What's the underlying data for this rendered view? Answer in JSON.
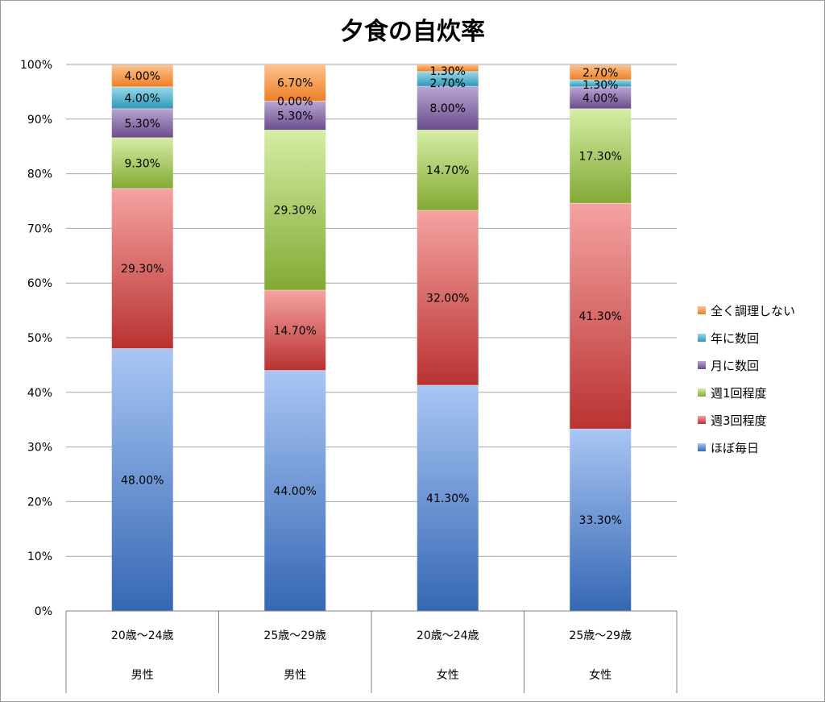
{
  "chart_data": {
    "type": "bar",
    "stacked": true,
    "title": "夕食の自炊率",
    "yticks": [
      "0%",
      "10%",
      "20%",
      "30%",
      "40%",
      "50%",
      "60%",
      "70%",
      "80%",
      "90%",
      "100%"
    ],
    "ylim": [
      0,
      100
    ],
    "grid": true,
    "legend_position": "right",
    "categories": [
      {
        "age": "20歳〜24歳",
        "gender": "男性"
      },
      {
        "age": "25歳〜29歳",
        "gender": "男性"
      },
      {
        "age": "20歳〜24歳",
        "gender": "女性"
      },
      {
        "age": "25歳〜29歳",
        "gender": "女性"
      }
    ],
    "series": [
      {
        "name": "ほぼ毎日",
        "color": "#4f7fc7",
        "colors": [
          "#3567b4",
          "#a9c6f4"
        ],
        "values": [
          48.0,
          44.0,
          41.3,
          33.3
        ],
        "labels": [
          "48.00%",
          "44.00%",
          "41.30%",
          "33.30%"
        ]
      },
      {
        "name": "週3回程度",
        "color": "#cd4d4b",
        "colors": [
          "#b93231",
          "#f5a3a2"
        ],
        "values": [
          29.3,
          14.7,
          32.0,
          41.3
        ],
        "labels": [
          "29.30%",
          "14.70%",
          "32.00%",
          "41.30%"
        ]
      },
      {
        "name": "週1回程度",
        "color": "#98bc48",
        "colors": [
          "#83a934",
          "#d4eea5"
        ],
        "values": [
          9.3,
          29.3,
          14.7,
          17.3
        ],
        "labels": [
          "9.30%",
          "29.30%",
          "14.70%",
          "17.30%"
        ]
      },
      {
        "name": "月に数回",
        "color": "#8064a2",
        "colors": [
          "#6a4d8c",
          "#b9a5d3"
        ],
        "values": [
          5.3,
          5.3,
          8.0,
          4.0
        ],
        "labels": [
          "5.30%",
          "5.30%",
          "8.00%",
          "4.00%"
        ]
      },
      {
        "name": "年に数回",
        "color": "#4bacc6",
        "colors": [
          "#2e97b8",
          "#9ad8ea"
        ],
        "values": [
          4.0,
          0.0,
          2.7,
          1.3
        ],
        "labels": [
          "4.00%",
          "0.00%",
          "2.70%",
          "1.30%"
        ]
      },
      {
        "name": "全く調理しない",
        "color": "#f79646",
        "colors": [
          "#ee7f24",
          "#fcc38f"
        ],
        "values": [
          4.0,
          6.7,
          1.3,
          2.7
        ],
        "labels": [
          "4.00%",
          "6.70%",
          "1.30%",
          "2.70%"
        ]
      }
    ]
  }
}
